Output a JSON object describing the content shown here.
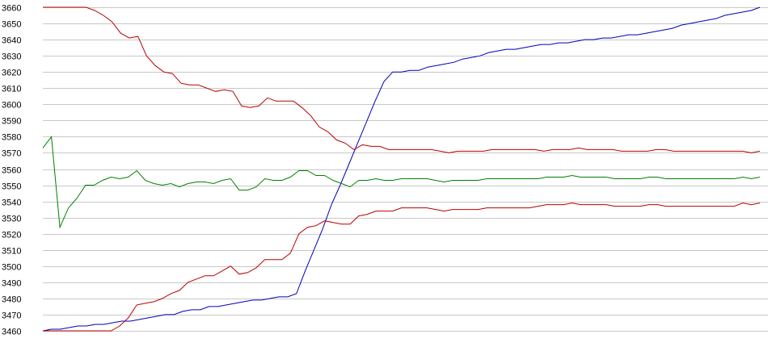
{
  "chart_data": {
    "type": "line",
    "title": "",
    "xlabel": "",
    "ylabel": "",
    "ylim": [
      3460,
      3660
    ],
    "grid": true,
    "legend": "none",
    "y_ticks": [
      "3660",
      "3650",
      "3640",
      "3630",
      "3620",
      "3610",
      "3600",
      "3590",
      "3580",
      "3570",
      "3560",
      "3550",
      "3540",
      "3530",
      "3520",
      "3510",
      "3500",
      "3490",
      "3480",
      "3470",
      "3460"
    ],
    "series": [
      {
        "color": "#0000bb",
        "values": [
          3460,
          3461,
          3461,
          3462,
          3463,
          3463,
          3464,
          3464,
          3465,
          3466,
          3466,
          3467,
          3468,
          3469,
          3470,
          3470,
          3472,
          3473,
          3473,
          3475,
          3475,
          3476,
          3477,
          3478,
          3479,
          3479,
          3480,
          3481,
          3481,
          3483,
          3497,
          3510,
          3523,
          3538,
          3550,
          3563,
          3576,
          3589,
          3602,
          3614,
          3620,
          3620,
          3621,
          3621,
          3623,
          3624,
          3625,
          3626,
          3628,
          3629,
          3630,
          3632,
          3633,
          3634,
          3634,
          3635,
          3636,
          3637,
          3637,
          3638,
          3638,
          3639,
          3640,
          3640,
          3641,
          3641,
          3642,
          3643,
          3643,
          3644,
          3645,
          3646,
          3647,
          3649,
          3650,
          3651,
          3652,
          3653,
          3655,
          3656,
          3657,
          3658,
          3660
        ]
      },
      {
        "color": "#bb0000",
        "values": [
          3660,
          3660,
          3660,
          3660,
          3660,
          3660,
          3658,
          3655,
          3651,
          3644,
          3641,
          3642,
          3630,
          3624,
          3620,
          3619,
          3613,
          3612,
          3612,
          3610,
          3608,
          3609,
          3608,
          3599,
          3598,
          3599,
          3604,
          3602,
          3602,
          3602,
          3598,
          3593,
          3586,
          3583,
          3578,
          3576,
          3572,
          3575,
          3574,
          3574,
          3572,
          3572,
          3572,
          3572,
          3572,
          3572,
          3571,
          3570,
          3571,
          3571,
          3571,
          3571,
          3572,
          3572,
          3572,
          3572,
          3572,
          3572,
          3571,
          3572,
          3572,
          3572,
          3573,
          3572,
          3572,
          3572,
          3572,
          3571,
          3571,
          3571,
          3571,
          3572,
          3572,
          3571,
          3571,
          3571,
          3571,
          3571,
          3571,
          3571,
          3571,
          3571,
          3570,
          3571
        ]
      },
      {
        "color": "#008000",
        "values": [
          3573,
          3580,
          3524,
          3536,
          3542,
          3550,
          3550,
          3553,
          3555,
          3554,
          3555,
          3559,
          3553,
          3551,
          3550,
          3551,
          3549,
          3551,
          3552,
          3552,
          3551,
          3553,
          3554,
          3547,
          3547,
          3549,
          3554,
          3553,
          3553,
          3555,
          3559,
          3559,
          3556,
          3556,
          3553,
          3551,
          3549,
          3553,
          3553,
          3554,
          3553,
          3553,
          3554,
          3554,
          3554,
          3554,
          3553,
          3552,
          3553,
          3553,
          3553,
          3553,
          3554,
          3554,
          3554,
          3554,
          3554,
          3554,
          3554,
          3555,
          3555,
          3555,
          3556,
          3555,
          3555,
          3555,
          3555,
          3554,
          3554,
          3554,
          3554,
          3555,
          3555,
          3554,
          3554,
          3554,
          3554,
          3554,
          3554,
          3554,
          3554,
          3554,
          3555,
          3554,
          3555
        ]
      },
      {
        "color": "#bb0000",
        "values": [
          3460,
          3460,
          3460,
          3460,
          3460,
          3460,
          3460,
          3460,
          3460,
          3463,
          3468,
          3476,
          3477,
          3478,
          3480,
          3483,
          3485,
          3490,
          3492,
          3494,
          3494,
          3497,
          3500,
          3495,
          3496,
          3499,
          3504,
          3504,
          3504,
          3508,
          3520,
          3524,
          3525,
          3528,
          3527,
          3526,
          3526,
          3531,
          3532,
          3534,
          3534,
          3534,
          3536,
          3536,
          3536,
          3536,
          3535,
          3534,
          3535,
          3535,
          3535,
          3535,
          3536,
          3536,
          3536,
          3536,
          3536,
          3536,
          3537,
          3538,
          3538,
          3538,
          3539,
          3538,
          3538,
          3538,
          3538,
          3537,
          3537,
          3537,
          3537,
          3538,
          3538,
          3537,
          3537,
          3537,
          3537,
          3537,
          3537,
          3537,
          3537,
          3537,
          3539,
          3538,
          3539
        ]
      }
    ]
  }
}
